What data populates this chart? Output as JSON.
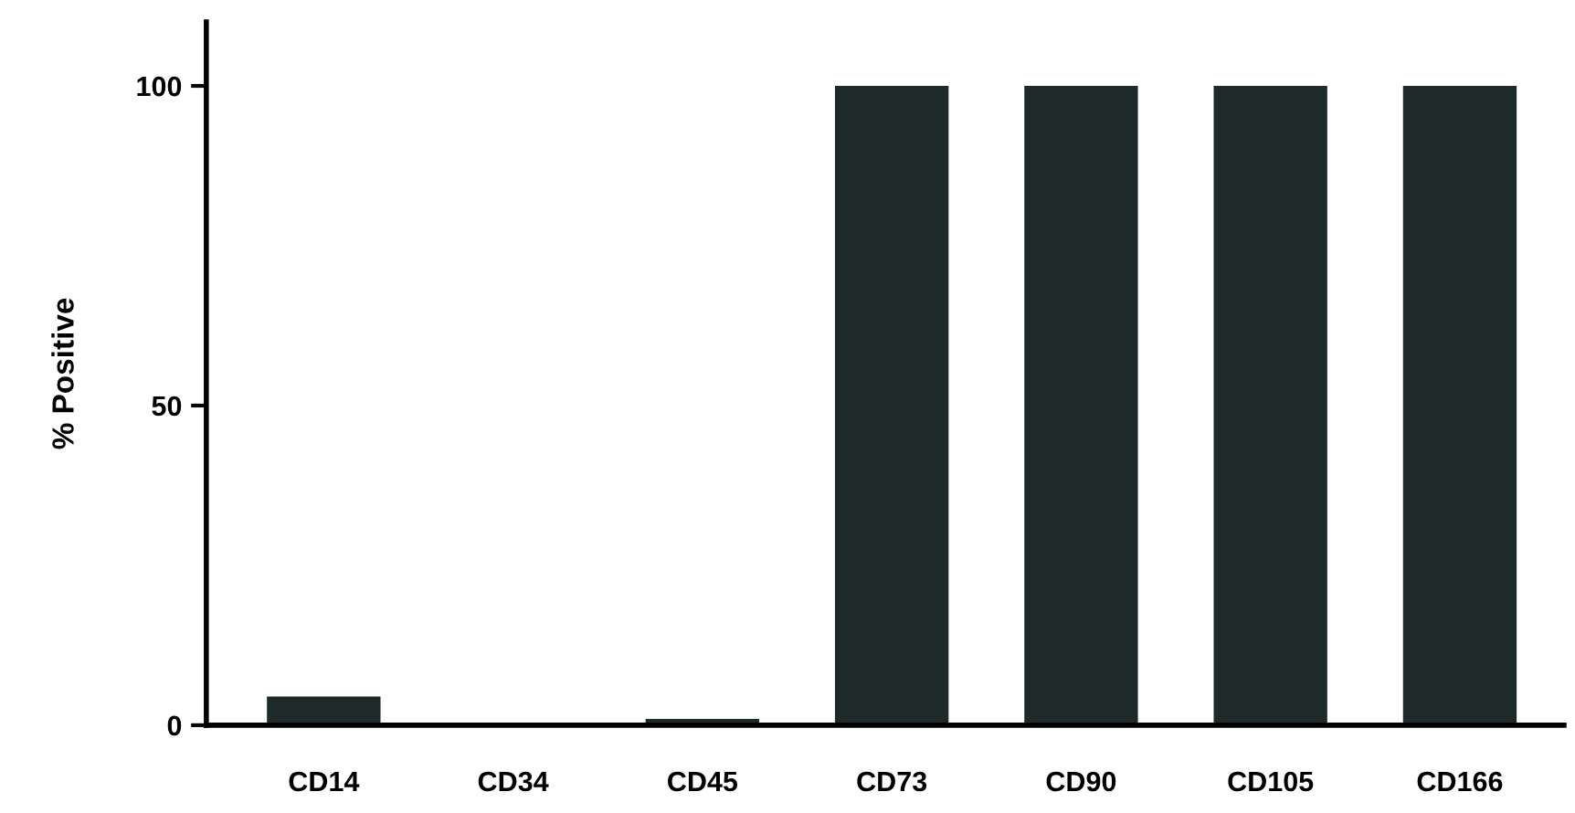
{
  "chart_data": {
    "type": "bar",
    "ylabel": "% Positive",
    "categories": [
      "CD14",
      "CD34",
      "CD45",
      "CD73",
      "CD90",
      "CD105",
      "CD166"
    ],
    "values": [
      4.5,
      0,
      1,
      100,
      100,
      100,
      100
    ],
    "color": "#1e2a2a",
    "ylim": [
      0,
      110
    ],
    "yticks": [
      0,
      50,
      100
    ],
    "grid": false
  }
}
